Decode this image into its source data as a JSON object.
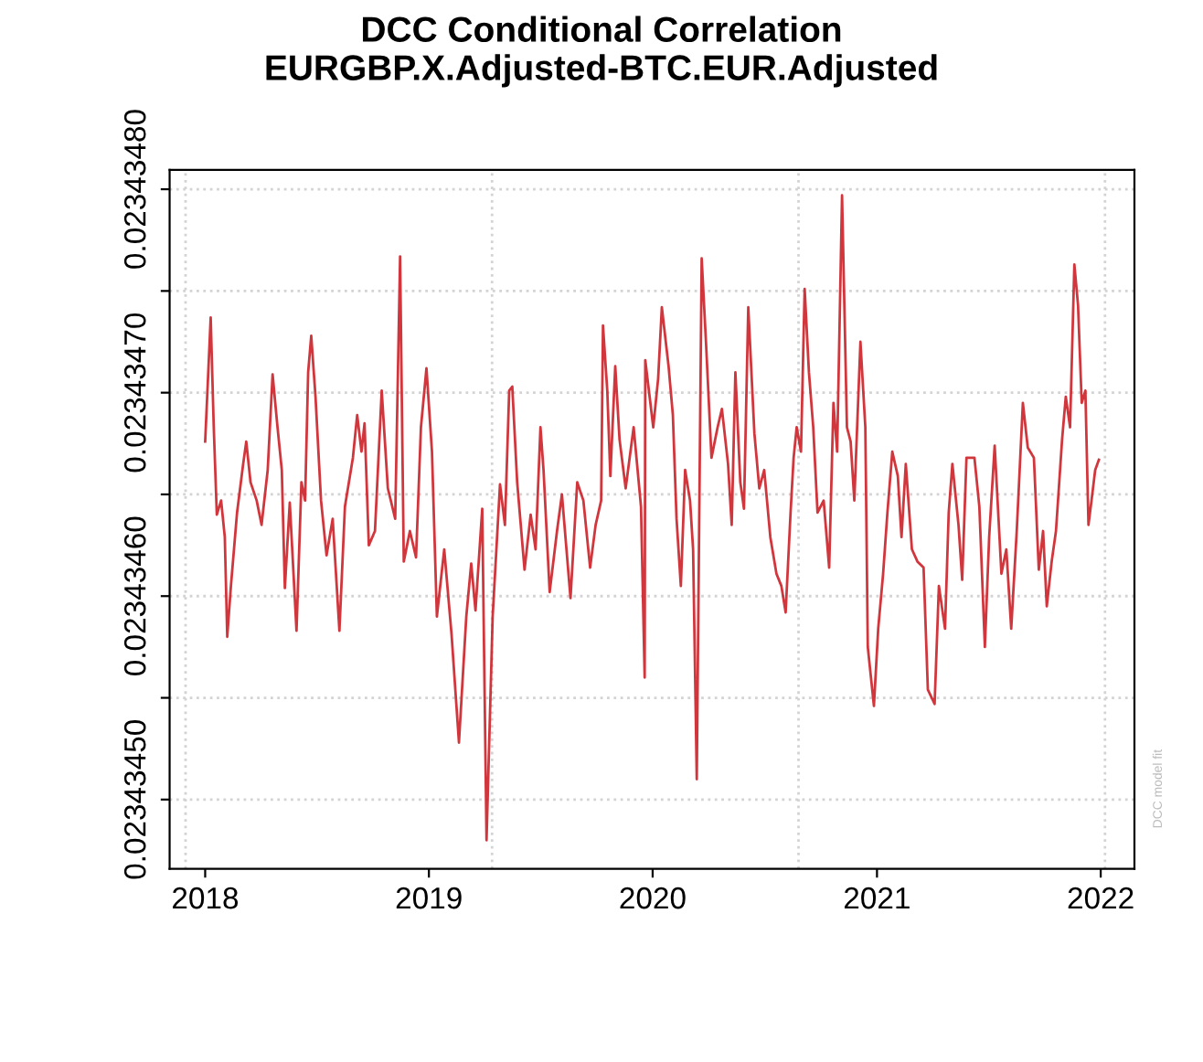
{
  "chart_data": {
    "type": "line",
    "title": "DCC Conditional Correlation\nEURGBP.X.Adjusted-BTC.EUR.Adjusted",
    "x": [
      "2018-01-01",
      "2018-01-05",
      "2018-01-10",
      "2018-01-15",
      "2018-01-20",
      "2018-01-27",
      "2018-02-02",
      "2018-02-06",
      "2018-02-12",
      "2018-02-22",
      "2018-03-04",
      "2018-03-09",
      "2018-03-16",
      "2018-03-26",
      "2018-04-03",
      "2018-04-13",
      "2018-04-21",
      "2018-04-29",
      "2018-05-06",
      "2018-05-11",
      "2018-05-19",
      "2018-05-30",
      "2018-06-07",
      "2018-06-13",
      "2018-06-18",
      "2018-06-23",
      "2018-06-30",
      "2018-07-09",
      "2018-07-18",
      "2018-07-28",
      "2018-08-08",
      "2018-08-17",
      "2018-08-30",
      "2018-09-06",
      "2018-09-13",
      "2018-09-18",
      "2018-09-25",
      "2018-10-05",
      "2018-10-16",
      "2018-10-26",
      "2018-11-07",
      "2018-11-15",
      "2018-11-21",
      "2018-12-01",
      "2018-12-11",
      "2018-12-19",
      "2018-12-28",
      "2019-01-06",
      "2019-01-14",
      "2019-01-26",
      "2019-02-07",
      "2019-02-19",
      "2019-03-03",
      "2019-03-11",
      "2019-03-18",
      "2019-03-29",
      "2019-04-05",
      "2019-04-15",
      "2019-04-27",
      "2019-05-05",
      "2019-05-12",
      "2019-05-17",
      "2019-05-25",
      "2019-06-06",
      "2019-06-16",
      "2019-06-24",
      "2019-07-02",
      "2019-07-07",
      "2019-07-17",
      "2019-07-29",
      "2019-08-06",
      "2019-08-20",
      "2019-08-31",
      "2019-09-10",
      "2019-09-21",
      "2019-09-30",
      "2019-10-09",
      "2019-10-12",
      "2019-10-19",
      "2019-10-24",
      "2019-11-01",
      "2019-11-08",
      "2019-11-18",
      "2019-12-01",
      "2019-12-13",
      "2019-12-19",
      "2019-12-20",
      "2020-01-02",
      "2020-01-10",
      "2020-01-16",
      "2020-01-27",
      "2020-02-03",
      "2020-02-09",
      "2020-02-16",
      "2020-02-23",
      "2020-03-02",
      "2020-03-07",
      "2020-03-13",
      "2020-03-21",
      "2020-03-28",
      "2020-04-06",
      "2020-04-16",
      "2020-04-23",
      "2020-05-03",
      "2020-05-09",
      "2020-05-15",
      "2020-05-23",
      "2020-05-29",
      "2020-06-05",
      "2020-06-15",
      "2020-06-23",
      "2020-07-01",
      "2020-07-11",
      "2020-07-21",
      "2020-07-29",
      "2020-08-05",
      "2020-08-13",
      "2020-08-18",
      "2020-08-23",
      "2020-08-30",
      "2020-09-05",
      "2020-09-12",
      "2020-09-19",
      "2020-09-26",
      "2020-10-06",
      "2020-10-15",
      "2020-10-22",
      "2020-10-28",
      "2020-11-05",
      "2020-11-13",
      "2020-11-19",
      "2020-11-25",
      "2020-12-05",
      "2020-12-13",
      "2020-12-17",
      "2020-12-27",
      "2021-01-03",
      "2021-01-11",
      "2021-01-18",
      "2021-01-26",
      "2021-02-04",
      "2021-02-10",
      "2021-02-17",
      "2021-02-27",
      "2021-03-08",
      "2021-03-18",
      "2021-03-25",
      "2021-04-05",
      "2021-04-12",
      "2021-04-22",
      "2021-04-28",
      "2021-05-04",
      "2021-05-14",
      "2021-05-20",
      "2021-05-27",
      "2021-06-09",
      "2021-06-17",
      "2021-06-26",
      "2021-07-03",
      "2021-07-12",
      "2021-07-23",
      "2021-07-31",
      "2021-08-08",
      "2021-08-17",
      "2021-08-27",
      "2021-09-04",
      "2021-09-14",
      "2021-09-22",
      "2021-09-29",
      "2021-10-05",
      "2021-10-13",
      "2021-10-20",
      "2021-10-30",
      "2021-11-05",
      "2021-11-12",
      "2021-11-19",
      "2021-11-25",
      "2021-12-01",
      "2021-12-07",
      "2021-12-12",
      "2021-12-17",
      "2021-12-23",
      "2021-12-29"
    ],
    "series": [
      {
        "color": "#cc2027",
        "values": [
          0.023434676,
          0.023434703,
          0.023434737,
          0.023434683,
          0.02343464,
          0.023434647,
          0.023434629,
          0.02343458,
          0.023434605,
          0.023434641,
          0.023434665,
          0.023434676,
          0.023434656,
          0.023434647,
          0.023434635,
          0.023434662,
          0.023434709,
          0.023434683,
          0.023434662,
          0.023434604,
          0.023434646,
          0.023434583,
          0.023434656,
          0.023434647,
          0.02343471,
          0.023434728,
          0.023434698,
          0.023434647,
          0.02343462,
          0.023434638,
          0.023434583,
          0.023434644,
          0.023434668,
          0.023434689,
          0.023434671,
          0.023434685,
          0.023434625,
          0.023434632,
          0.023434701,
          0.023434653,
          0.023434638,
          0.023434767,
          0.023434617,
          0.023434632,
          0.023434619,
          0.023434683,
          0.023434712,
          0.023434671,
          0.02343459,
          0.023434623,
          0.023434581,
          0.023434528,
          0.02343459,
          0.023434616,
          0.023434593,
          0.023434643,
          0.02343448,
          0.02343459,
          0.023434655,
          0.023434635,
          0.023434701,
          0.023434703,
          0.023434656,
          0.023434613,
          0.02343464,
          0.023434623,
          0.023434683,
          0.023434662,
          0.023434602,
          0.023434632,
          0.02343465,
          0.023434599,
          0.023434656,
          0.023434647,
          0.023434614,
          0.023434635,
          0.023434647,
          0.023434733,
          0.023434701,
          0.023434659,
          0.023434713,
          0.023434677,
          0.023434653,
          0.023434683,
          0.023434644,
          0.02343456,
          0.023434716,
          0.023434683,
          0.023434707,
          0.023434742,
          0.023434713,
          0.023434689,
          0.023434638,
          0.023434605,
          0.023434662,
          0.023434647,
          0.023434623,
          0.02343451,
          0.023434766,
          0.023434725,
          0.023434668,
          0.023434683,
          0.023434692,
          0.023434665,
          0.023434635,
          0.02343471,
          0.023434656,
          0.023434643,
          0.023434742,
          0.02343468,
          0.023434653,
          0.023434662,
          0.023434629,
          0.023434611,
          0.023434605,
          0.023434592,
          0.023434641,
          0.023434668,
          0.023434683,
          0.023434671,
          0.023434751,
          0.02343471,
          0.023434683,
          0.023434641,
          0.023434647,
          0.023434614,
          0.023434695,
          0.023434671,
          0.023434797,
          0.023434683,
          0.023434676,
          0.023434647,
          0.023434725,
          0.023434683,
          0.023434575,
          0.023434546,
          0.023434584,
          0.023434611,
          0.023434641,
          0.023434671,
          0.023434659,
          0.023434629,
          0.023434665,
          0.023434623,
          0.023434617,
          0.023434614,
          0.023434554,
          0.023434547,
          0.023434605,
          0.023434584,
          0.023434641,
          0.023434665,
          0.023434635,
          0.023434608,
          0.023434668,
          0.023434668,
          0.023434644,
          0.023434575,
          0.023434629,
          0.023434674,
          0.023434611,
          0.023434623,
          0.023434584,
          0.023434632,
          0.023434695,
          0.023434673,
          0.023434668,
          0.023434613,
          0.023434632,
          0.023434595,
          0.023434617,
          0.023434632,
          0.023434677,
          0.023434698,
          0.023434683,
          0.023434763,
          0.023434743,
          0.023434695,
          0.023434701,
          0.023434635,
          0.023434647,
          0.023434662,
          0.023434667
        ]
      }
    ],
    "xlim": [
      "2017-11-04",
      "2022-02-25"
    ],
    "xticks": [
      {
        "value": "2018-01-01",
        "label": "2018"
      },
      {
        "value": "2019-01-01",
        "label": "2019"
      },
      {
        "value": "2020-01-01",
        "label": "2020"
      },
      {
        "value": "2021-01-01",
        "label": "2021"
      },
      {
        "value": "2022-01-01",
        "label": "2022"
      }
    ],
    "ylim": [
      0.023434466,
      0.0234348095
    ],
    "yticks": [
      {
        "value": 0.0234345,
        "label": "0.02343450"
      },
      {
        "value": 0.02343455,
        "label": null
      },
      {
        "value": 0.0234346,
        "label": "0.02343460"
      },
      {
        "value": 0.02343465,
        "label": null
      },
      {
        "value": 0.0234347,
        "label": "0.02343470"
      },
      {
        "value": 0.02343475,
        "label": null
      },
      {
        "value": 0.0234348,
        "label": "0.02343480"
      }
    ],
    "grid": "y",
    "ref_lines": [
      {
        "axis": "x",
        "value": "2017-11-30",
        "color": "#d3d3d3",
        "line_style": "dotted"
      },
      {
        "axis": "x",
        "value": "2019-04-14",
        "color": "#d3d3d3",
        "line_style": "dotted"
      },
      {
        "axis": "x",
        "value": "2020-08-26",
        "color": "#d3d3d3",
        "line_style": "dotted"
      },
      {
        "axis": "x",
        "value": "2022-01-08",
        "color": "#d3d3d3",
        "line_style": "dotted"
      }
    ],
    "annotations": [
      "DCC model fit"
    ],
    "line_style": "solid",
    "legend": false
  }
}
